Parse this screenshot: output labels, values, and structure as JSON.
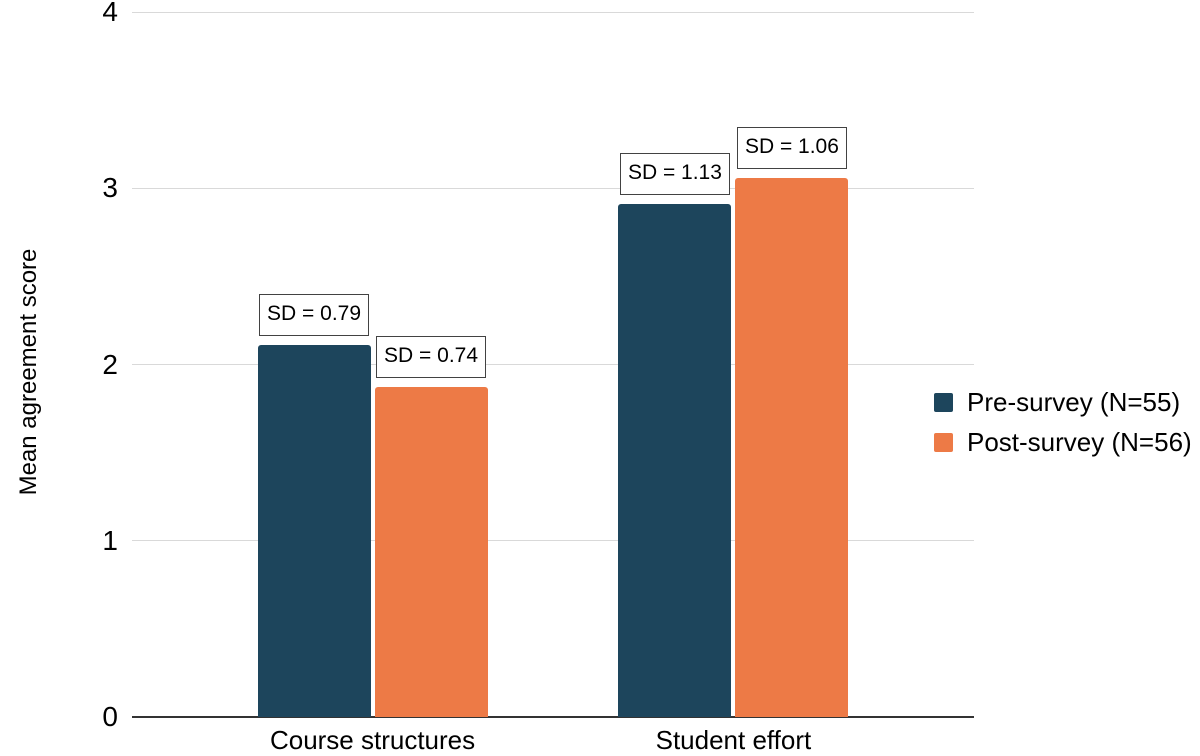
{
  "chart_data": {
    "type": "bar",
    "title": "",
    "xlabel": "",
    "ylabel": "Mean agreement score",
    "categories": [
      "Course structures",
      "Student effort"
    ],
    "series": [
      {
        "name": "Pre-survey (N=55)",
        "color": "#1d455c",
        "values": [
          2.11,
          2.91
        ],
        "bar_annotations": [
          "SD = 0.79",
          "SD = 1.13"
        ]
      },
      {
        "name": "Post-survey (N=56)",
        "color": "#ed7a46",
        "values": [
          1.87,
          3.06
        ],
        "bar_annotations": [
          "SD = 0.74",
          "SD = 1.06"
        ]
      }
    ],
    "ylim": [
      0,
      4
    ],
    "yticks": [
      "0",
      "1",
      "2",
      "3",
      "4"
    ],
    "grid": true,
    "legend_position": "right"
  },
  "colors": {
    "background": "#ffffff",
    "gridline": "#d9d9d9",
    "axis_line": "#333333",
    "text": "#000000",
    "annotation_bg": "#ffffff",
    "annotation_border": "#424242"
  }
}
